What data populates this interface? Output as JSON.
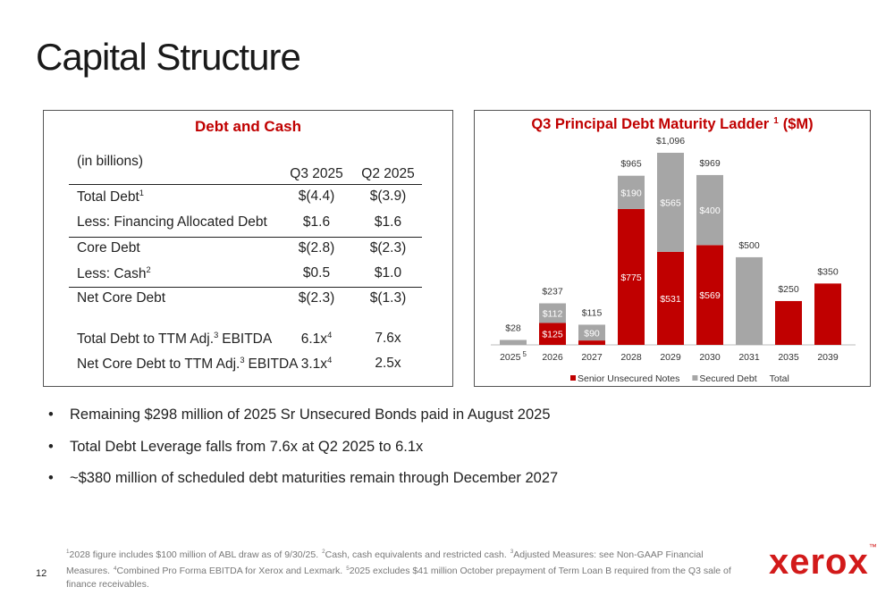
{
  "header": {
    "title": "Capital Structure"
  },
  "table": {
    "title": "Debt and Cash",
    "unit": "(in billions)",
    "columns": [
      "Q3 2025",
      "Q2 2025"
    ],
    "rows": [
      {
        "label": "Total Debt",
        "label_sup": "1",
        "cells": [
          "$(4.4)",
          "$(3.9)"
        ]
      },
      {
        "label": "Less: Financing Allocated Debt",
        "cells": [
          "$1.6",
          "$1.6"
        ]
      },
      {
        "label": "Core Debt",
        "cells": [
          "$(2.8)",
          "$(2.3)"
        ]
      },
      {
        "label": "Less: Cash",
        "label_sup": "2",
        "cells": [
          "$0.5",
          "$1.0"
        ]
      },
      {
        "label": "Net Core Debt",
        "cells": [
          "$(2.3)",
          "$(1.3)"
        ]
      },
      {
        "label": "Total Debt to TTM Adj.",
        "label_sup": "3",
        "label_after": "EBITDA",
        "cells": [
          "6.1x",
          "7.6x"
        ],
        "cell_sup": "4"
      },
      {
        "label": "Net Core Debt to TTM Adj.",
        "label_sup": "3",
        "label_after": "EBITDA",
        "cells": [
          "3.1x",
          "2.5x"
        ],
        "cell_sup": "4"
      }
    ]
  },
  "chart_data": {
    "type": "stacked_bar",
    "title": "Q3 Principal Debt Maturity Ladder",
    "title_sup": "1",
    "title_unit": "($M)",
    "categories": [
      "2025",
      "2026",
      "2027",
      "2028",
      "2029",
      "2030",
      "2031",
      "2035",
      "2039"
    ],
    "category_sups": [
      "5",
      null,
      null,
      null,
      null,
      null,
      null,
      null,
      null
    ],
    "series": [
      {
        "name": "Senior Unsecured Notes",
        "color": "#c00000",
        "values": [
          null,
          125,
          25,
          775,
          531,
          569,
          null,
          250,
          350
        ],
        "value_labels": [
          null,
          "$125",
          null,
          "$775",
          "$531",
          "$569",
          null,
          null,
          null
        ]
      },
      {
        "name": "Secured Debt",
        "color": "#a6a6a6",
        "values": [
          28,
          112,
          90,
          190,
          565,
          400,
          500,
          null,
          null
        ],
        "value_labels": [
          null,
          "$112",
          "$90",
          "$190",
          "$565",
          "$400",
          null,
          null,
          null
        ]
      },
      {
        "name": "Total",
        "values": [
          28,
          237,
          115,
          965,
          1096,
          969,
          500,
          250,
          350
        ],
        "value_labels": [
          "$28",
          "$237",
          "$115",
          "$965",
          "$1,096",
          "$969",
          "$500",
          "$250",
          "$350"
        ]
      }
    ]
  },
  "bullets": [
    "Remaining $298 million of 2025 Sr Unsecured Bonds paid in August 2025",
    "Total Debt Leverage falls from 7.6x at Q2 2025 to 6.1x",
    "~$380 million of scheduled debt maturities remain through December 2027"
  ],
  "footnotes": [
    {
      "sup": "1",
      "text": "2028 figure includes $100 million of ABL draw as of 9/30/25."
    },
    {
      "sup": "2",
      "text": "Cash, cash equivalents and restricted cash."
    },
    {
      "sup": "3",
      "text": "Adjusted Measures: see Non-GAAP Financial Measures."
    },
    {
      "sup": "4",
      "text": "Combined Pro Forma EBITDA for Xerox and Lexmark."
    },
    {
      "sup": "5",
      "text": "2025 excludes $41 million October prepayment of Term Loan B required from the Q3 sale of finance receivables."
    }
  ],
  "footer": {
    "page": "12",
    "logo": "xerox",
    "logo_mark": "™"
  }
}
